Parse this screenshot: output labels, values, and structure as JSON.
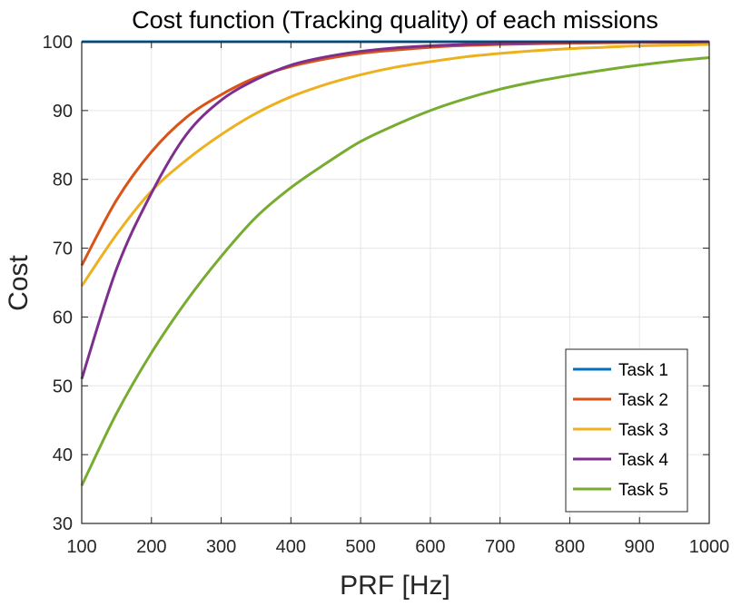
{
  "chart_data": {
    "type": "line",
    "title": "Cost function (Tracking quality) of each missions",
    "xlabel": "PRF [Hz]",
    "ylabel": "Cost",
    "xlim": [
      100,
      1000
    ],
    "ylim": [
      30,
      100
    ],
    "xticks": [
      "100",
      "200",
      "300",
      "400",
      "500",
      "600",
      "700",
      "800",
      "900",
      "1000"
    ],
    "yticks": [
      "30",
      "40",
      "50",
      "60",
      "70",
      "80",
      "90",
      "100"
    ],
    "grid": true,
    "legend_position": "bottom-right",
    "x": [
      100,
      150,
      200,
      250,
      300,
      350,
      400,
      450,
      500,
      550,
      600,
      650,
      700,
      750,
      800,
      850,
      900,
      950,
      1000
    ],
    "series": [
      {
        "name": "Task 1",
        "color": "#0072BD",
        "values": [
          100,
          100,
          100,
          100,
          100,
          100,
          100,
          100,
          100,
          100,
          100,
          100,
          100,
          100,
          100,
          100,
          100,
          100,
          100
        ]
      },
      {
        "name": "Task 2",
        "color": "#D95319",
        "values": [
          67.5,
          77.0,
          84.0,
          89.0,
          92.3,
          94.8,
          96.4,
          97.5,
          98.3,
          98.8,
          99.2,
          99.45,
          99.6,
          99.7,
          99.8,
          99.85,
          99.9,
          99.9,
          99.95
        ]
      },
      {
        "name": "Task 3",
        "color": "#EDB120",
        "values": [
          64.5,
          72.0,
          78.3,
          82.8,
          86.5,
          89.6,
          92.0,
          93.8,
          95.2,
          96.3,
          97.1,
          97.8,
          98.3,
          98.7,
          99.0,
          99.2,
          99.4,
          99.5,
          99.6
        ]
      },
      {
        "name": "Task 4",
        "color": "#7E2F8E",
        "values": [
          51.0,
          67.0,
          78.0,
          86.5,
          91.5,
          94.5,
          96.6,
          97.8,
          98.6,
          99.1,
          99.4,
          99.6,
          99.75,
          99.85,
          99.9,
          99.93,
          99.95,
          99.97,
          99.98
        ]
      },
      {
        "name": "Task 5",
        "color": "#77AC30",
        "values": [
          35.5,
          46.0,
          54.8,
          62.3,
          68.8,
          74.5,
          78.8,
          82.3,
          85.5,
          87.9,
          90.0,
          91.7,
          93.1,
          94.2,
          95.1,
          95.9,
          96.6,
          97.2,
          97.7
        ]
      }
    ]
  }
}
